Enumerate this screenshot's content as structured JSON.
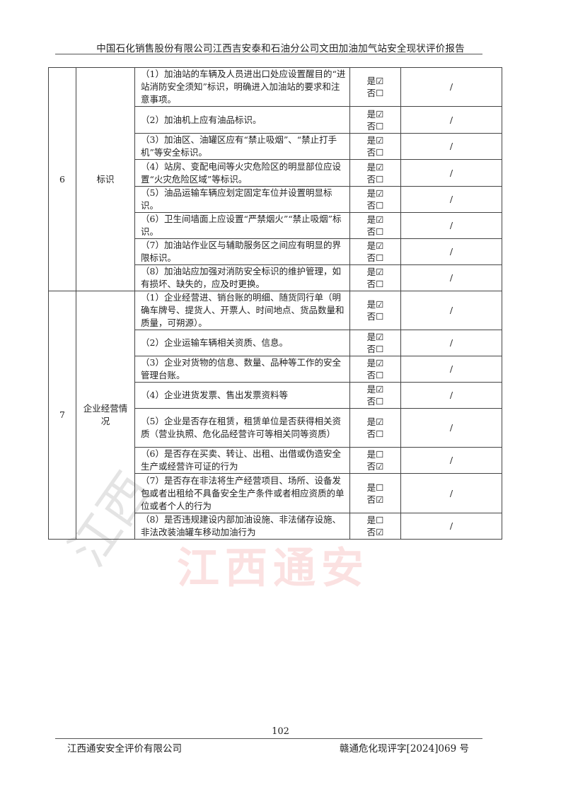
{
  "header": {
    "title": "中国石化销售股份有限公司江西吉安泰和石油分公司文田加油加气站安全现状评价报告"
  },
  "watermark": {
    "text": "江西通安",
    "color": "#eb5a5a"
  },
  "yes_label": "是",
  "no_label": "否",
  "checked": "☑",
  "unchecked": "☐",
  "sections": [
    {
      "no": "6",
      "name": "标识",
      "items": [
        {
          "text": "（1）加油站的车辆及人员进出口处应设置醒目的“进站消防安全须知”标识，明确进入加油站的要求和注意事项。",
          "yes": true,
          "remark": "/"
        },
        {
          "text": "（2）加油机上应有油品标识。",
          "yes": true,
          "remark": "/"
        },
        {
          "text": "（3）加油区、油罐区应有“禁止吸烟”、“禁止打手机”等安全标识。",
          "yes": true,
          "remark": "/"
        },
        {
          "text": "（4）站房、变配电间等火灾危险区的明显部位应设置“火灾危险区域”等标识。",
          "yes": true,
          "remark": "/"
        },
        {
          "text": "（5）油品运输车辆应划定固定车位并设置明显标识。",
          "yes": true,
          "remark": "/"
        },
        {
          "text": "（6）卫生间墙面上应设置“严禁烟火”“禁止吸烟”标识。",
          "yes": true,
          "remark": "/"
        },
        {
          "text": "（7）加油站作业区与辅助服务区之间应有明显的界限标识。",
          "yes": true,
          "remark": "/"
        },
        {
          "text": "（8）加油站应加强对消防安全标识的维护管理，如有损坏、缺失的，应及时更换。",
          "yes": true,
          "remark": "/"
        }
      ]
    },
    {
      "no": "7",
      "name": "企业经营情况",
      "items": [
        {
          "text": "（1）企业经营进、销台账的明细、随货同行单（明确车牌号、提货人、开票人、时间地点、货品数量和质量，可朔源）。",
          "yes": true,
          "remark": "/"
        },
        {
          "text": "（2）企业运输车辆相关资质、信息。",
          "yes": true,
          "remark": "/"
        },
        {
          "text": "（3）企业对货物的信息、数量、品种等工作的安全管理台账。",
          "yes": true,
          "remark": "/"
        },
        {
          "text": "（4）企业进货发票、售出发票资料等",
          "yes": true,
          "remark": "/"
        },
        {
          "text": "（5）企业是否存在租赁，租赁单位是否获得相关资质（营业执照、危化品经营许可等相关同等资质）",
          "yes": true,
          "remark": "/"
        },
        {
          "text": "（6）是否存在买卖、转让、出租、出借或伪造安全生产或经营许可证的行为",
          "yes": false,
          "remark": "/"
        },
        {
          "text": "（7）是否存在非法将生产经营项目、场所、设备发包或者出租给不具备安全生产条件或者相应资质的单位或者个人的行为",
          "yes": false,
          "remark": "/"
        },
        {
          "text": "（8）是否违规建设内部加油设施、非法储存设施、非法改装油罐车移动加油行为",
          "yes": false,
          "remark": "/"
        }
      ]
    }
  ],
  "footer": {
    "page": "102",
    "company": "江西通安安全评价有限公司",
    "doc_no": "赣通危化现评字[2024]069 号"
  }
}
